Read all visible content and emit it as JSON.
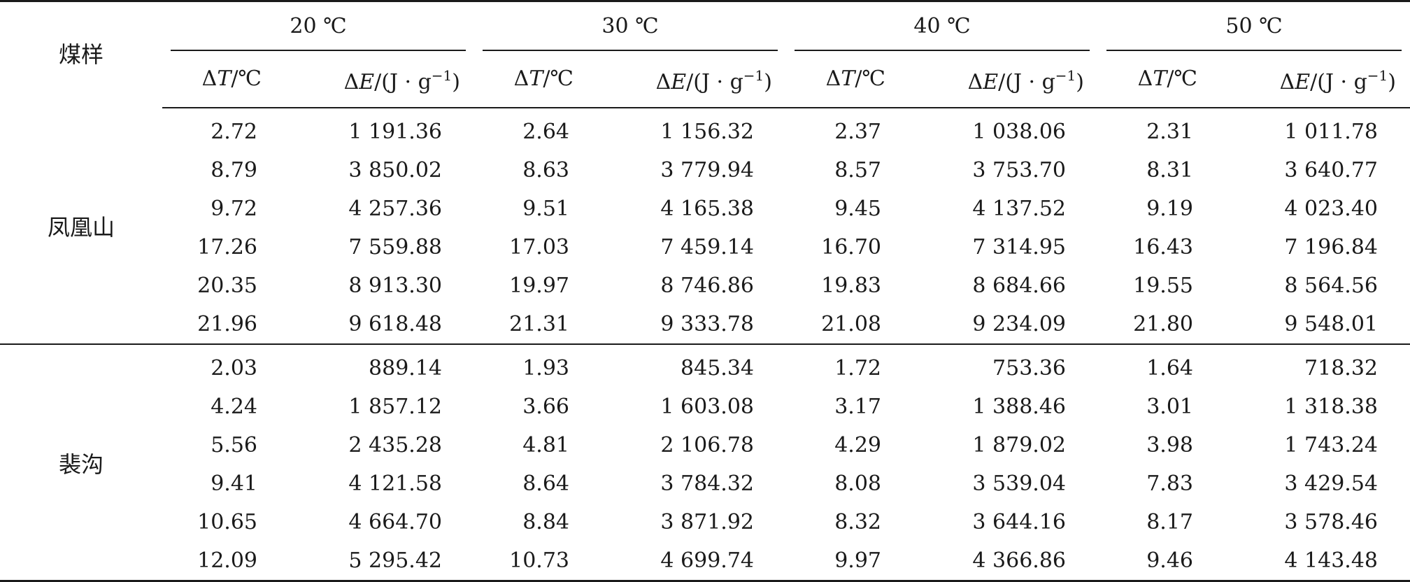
{
  "table": {
    "sample_header": "煤样",
    "temperatures": [
      "20 ℃",
      "30 ℃",
      "40 ℃",
      "50 ℃"
    ],
    "sub_headers": {
      "dt_delta": "Δ",
      "dt_symbol": "T",
      "dt_unit": "/℃",
      "de_delta": "Δ",
      "de_symbol": "E",
      "de_unit_pre": "/(J · g",
      "de_unit_sup": "−1",
      "de_unit_post": ")"
    },
    "groups": [
      {
        "name": "凤凰山",
        "rows": [
          [
            "2.72",
            "1 191.36",
            "2.64",
            "1 156.32",
            "2.37",
            "1 038.06",
            "2.31",
            "1 011.78"
          ],
          [
            "8.79",
            "3 850.02",
            "8.63",
            "3 779.94",
            "8.57",
            "3 753.70",
            "8.31",
            "3 640.77"
          ],
          [
            "9.72",
            "4 257.36",
            "9.51",
            "4 165.38",
            "9.45",
            "4 137.52",
            "9.19",
            "4 023.40"
          ],
          [
            "17.26",
            "7 559.88",
            "17.03",
            "7 459.14",
            "16.70",
            "7 314.95",
            "16.43",
            "7 196.84"
          ],
          [
            "20.35",
            "8 913.30",
            "19.97",
            "8 746.86",
            "19.83",
            "8 684.66",
            "19.55",
            "8 564.56"
          ],
          [
            "21.96",
            "9 618.48",
            "21.31",
            "9 333.78",
            "21.08",
            "9 234.09",
            "21.80",
            "9 548.01"
          ]
        ]
      },
      {
        "name": "裴沟",
        "rows": [
          [
            "2.03",
            "889.14",
            "1.93",
            "845.34",
            "1.72",
            "753.36",
            "1.64",
            "718.32"
          ],
          [
            "4.24",
            "1 857.12",
            "3.66",
            "1 603.08",
            "3.17",
            "1 388.46",
            "3.01",
            "1 318.38"
          ],
          [
            "5.56",
            "2 435.28",
            "4.81",
            "2 106.78",
            "4.29",
            "1 879.02",
            "3.98",
            "1 743.24"
          ],
          [
            "9.41",
            "4 121.58",
            "8.64",
            "3 784.32",
            "8.08",
            "3 539.04",
            "7.83",
            "3 429.54"
          ],
          [
            "10.65",
            "4 664.70",
            "8.84",
            "3 871.92",
            "8.32",
            "3 644.16",
            "8.17",
            "3 578.46"
          ],
          [
            "12.09",
            "5 295.42",
            "10.73",
            "4 699.74",
            "9.97",
            "4 366.86",
            "9.46",
            "4 143.48"
          ]
        ]
      }
    ]
  }
}
